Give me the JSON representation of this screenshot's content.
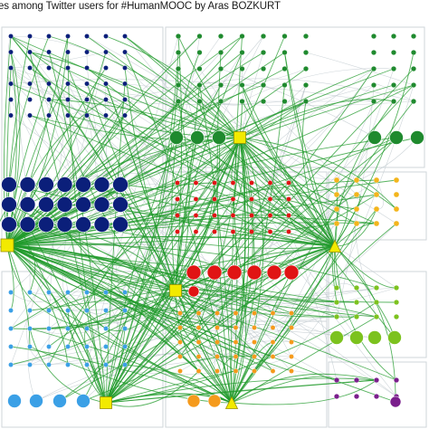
{
  "title": "es among Twitter users for #HumanMOOC by Aras BOZKURT",
  "colors": {
    "navy": "#0b1f7a",
    "green": "#1f8a2e",
    "red": "#e01414",
    "orange": "#f59a1c",
    "yellow_orange": "#f3b51c",
    "light_blue": "#3ba0e6",
    "lime": "#7cc21e",
    "purple": "#7a1e8c",
    "hub_yellow": "#f2ea00",
    "edge_green": "#1f9a2a",
    "edge_grey": "#b9c3c9",
    "box_border": "#cfd6da"
  },
  "hubs": [
    {
      "id": "hub-left",
      "shape": "square"
    },
    {
      "id": "hub-top",
      "shape": "square"
    },
    {
      "id": "hub-mid",
      "shape": "square"
    },
    {
      "id": "hub-bottom",
      "shape": "square"
    },
    {
      "id": "hub-right",
      "shape": "triangle"
    },
    {
      "id": "hub-bottom-right",
      "shape": "triangle"
    }
  ]
}
